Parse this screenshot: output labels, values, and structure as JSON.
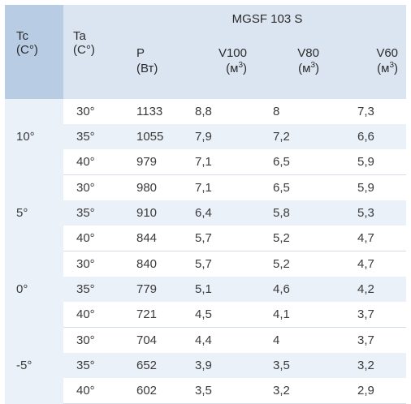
{
  "header": {
    "brand": "MGSF 103 S",
    "tc_line1": "Tc",
    "tc_line2": "(C°)",
    "ta_line1": "Ta",
    "ta_line2": "(C°)",
    "p_line1": "P",
    "p_line2": "(Вт)",
    "v100_line1": "V100",
    "v80_line1": "V80",
    "v60_line1": "V60",
    "unit_base": "(м",
    "unit_exp": "3",
    "unit_close": ")"
  },
  "groups": [
    {
      "tc": "10°",
      "rows": [
        {
          "ta": "30°",
          "p": "1133",
          "v100": "8,8",
          "v80": "8",
          "v60": "7,3"
        },
        {
          "ta": "35°",
          "p": "1055",
          "v100": "7,9",
          "v80": "7,2",
          "v60": "6,6"
        },
        {
          "ta": "40°",
          "p": "979",
          "v100": "7,1",
          "v80": "6,5",
          "v60": "5,9"
        }
      ]
    },
    {
      "tc": "5°",
      "rows": [
        {
          "ta": "30°",
          "p": "980",
          "v100": "7,1",
          "v80": "6,5",
          "v60": "5,9"
        },
        {
          "ta": "35°",
          "p": "910",
          "v100": "6,4",
          "v80": "5,8",
          "v60": "5,3"
        },
        {
          "ta": "40°",
          "p": "844",
          "v100": "5,7",
          "v80": "5,2",
          "v60": "4,7"
        }
      ]
    },
    {
      "tc": "0°",
      "rows": [
        {
          "ta": "30°",
          "p": "840",
          "v100": "5,7",
          "v80": "5,2",
          "v60": "4,7"
        },
        {
          "ta": "35°",
          "p": "779",
          "v100": "5,1",
          "v80": "4,6",
          "v60": "4,2"
        },
        {
          "ta": "40°",
          "p": "721",
          "v100": "4,5",
          "v80": "4,1",
          "v60": "3,7"
        }
      ]
    },
    {
      "tc": "-5°",
      "rows": [
        {
          "ta": "30°",
          "p": "704",
          "v100": "4,4",
          "v80": "4",
          "v60": "3,7"
        },
        {
          "ta": "35°",
          "p": "652",
          "v100": "3,9",
          "v80": "3,5",
          "v60": "3,2"
        },
        {
          "ta": "40°",
          "p": "602",
          "v100": "3,5",
          "v80": "3,2",
          "v60": "2,9"
        }
      ]
    }
  ]
}
